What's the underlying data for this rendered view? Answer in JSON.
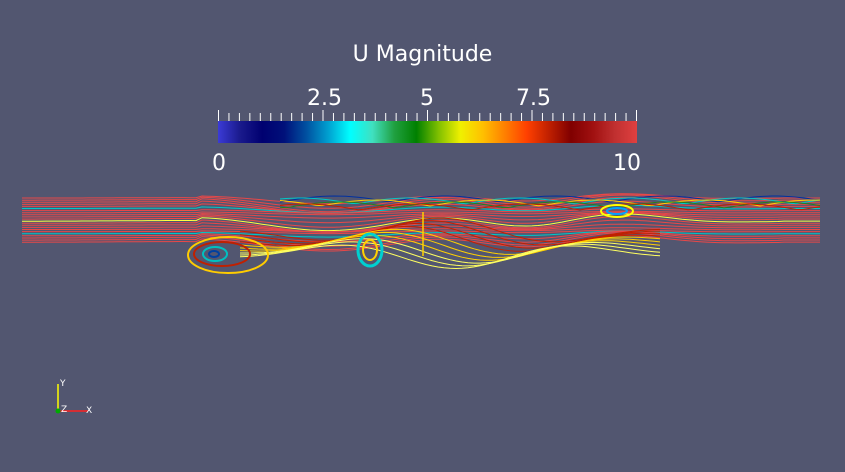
{
  "legend": {
    "title": "U Magnitude",
    "range_min": "0",
    "range_max": "10",
    "tick_labels": [
      "2.5",
      "5",
      "7.5"
    ],
    "colormap": [
      "#3b3bd6",
      "#1a1a8c",
      "#000070",
      "#00107a",
      "#0050a0",
      "#00a0d0",
      "#00ffff",
      "#40e0c0",
      "#20a040",
      "#008000",
      "#80c000",
      "#f0f000",
      "#ffc000",
      "#ff8000",
      "#ff4000",
      "#c02000",
      "#800000",
      "#a01010",
      "#c03030",
      "#e04040"
    ]
  },
  "axes": {
    "y_label": "Y",
    "z_label": "Z",
    "x_label": "X",
    "y_color": "#ffff00",
    "x_color": "#ff0000",
    "z_color": "#00aa00"
  },
  "scene": {
    "background": "#525670",
    "streamline_color": "#e84848"
  }
}
